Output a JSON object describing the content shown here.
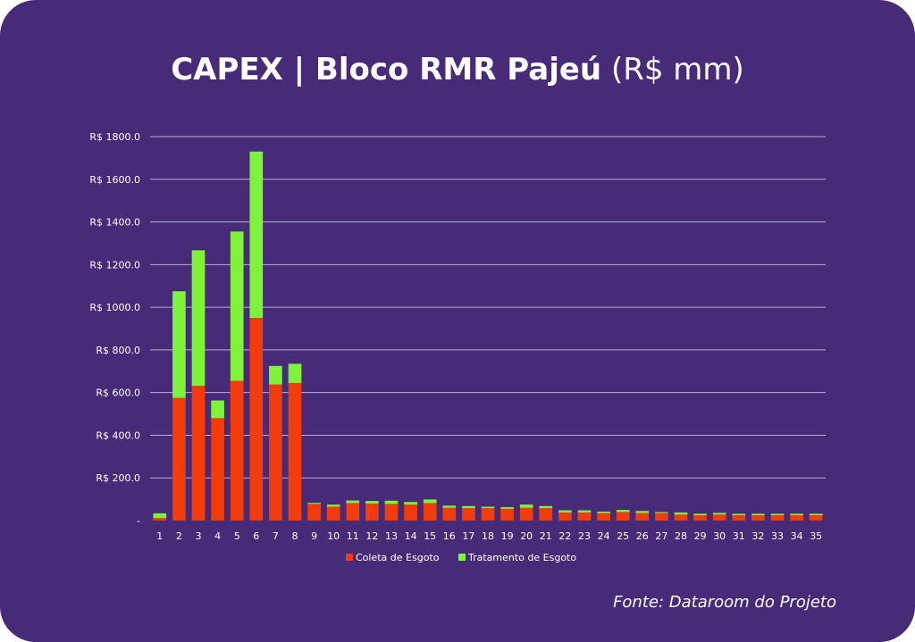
{
  "title": {
    "bold": "CAPEX | Bloco RMR Pajeú",
    "light": "(R$ mm)"
  },
  "source": "Fonte: Dataroom do Projeto",
  "colors": {
    "background": "#472a78",
    "coleta": "#f23c0c",
    "tratamento": "#7ff23a",
    "grid": "#b9add1",
    "text": "#ffffff"
  },
  "chart_data": {
    "type": "bar",
    "stacked": true,
    "categories": [
      "1",
      "2",
      "3",
      "4",
      "5",
      "6",
      "7",
      "8",
      "9",
      "10",
      "11",
      "12",
      "13",
      "14",
      "15",
      "16",
      "17",
      "18",
      "19",
      "20",
      "21",
      "22",
      "23",
      "24",
      "25",
      "26",
      "27",
      "28",
      "29",
      "30",
      "31",
      "32",
      "33",
      "34",
      "35"
    ],
    "series": [
      {
        "name": "Coleta de Esgoto",
        "values": [
          12,
          575,
          632,
          480,
          655,
          950,
          638,
          645,
          78,
          65,
          82,
          80,
          78,
          75,
          82,
          60,
          58,
          58,
          55,
          60,
          58,
          38,
          38,
          35,
          40,
          35,
          35,
          28,
          25,
          28,
          25,
          25,
          25,
          25,
          25
        ]
      },
      {
        "name": "Tratamento de Esgoto",
        "values": [
          22,
          500,
          635,
          83,
          700,
          780,
          87,
          90,
          5,
          10,
          12,
          12,
          15,
          12,
          17,
          10,
          10,
          7,
          8,
          15,
          10,
          10,
          10,
          7,
          10,
          10,
          5,
          10,
          7,
          8,
          7,
          7,
          7,
          7,
          7
        ]
      }
    ],
    "yticks": [
      "-",
      "R$ 200.0",
      "R$ 400.0",
      "R$ 600.0",
      "R$ 800.0",
      "R$ 1000.0",
      "R$ 1200.0",
      "R$ 1400.0",
      "R$ 1600.0",
      "R$ 1800.0"
    ],
    "ylim": [
      0,
      1800
    ],
    "grid": true,
    "legend_position": "bottom"
  }
}
